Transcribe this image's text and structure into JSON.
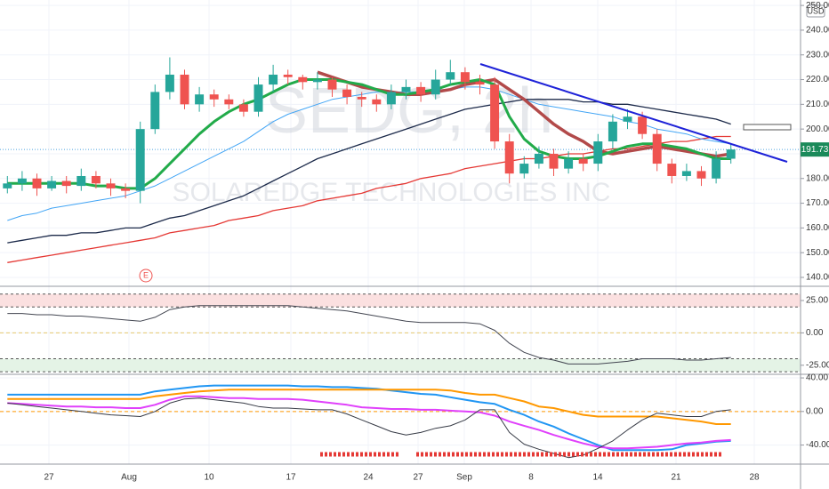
{
  "chart_data": [
    {
      "type": "candlestick",
      "watermark": "SEDG, 2h",
      "subtitle": "SOLAREDGE TECHNOLOGIES INC",
      "currency": "USD",
      "xtick_labels": [
        "27",
        "Aug",
        "10",
        "17",
        "24",
        "27",
        "Sep",
        "8",
        "14",
        "21",
        "28"
      ],
      "open": [
        176,
        178,
        180,
        176,
        179,
        177,
        181,
        178,
        176,
        175,
        200,
        215,
        222,
        210,
        214,
        212,
        210,
        207,
        218,
        222,
        221,
        219,
        220,
        216,
        213,
        212,
        210,
        215,
        217,
        214,
        220,
        223,
        219,
        218,
        195,
        182,
        186,
        190,
        184,
        188,
        186,
        195,
        203,
        205,
        198,
        186,
        181,
        183,
        180,
        188
      ],
      "high": [
        181,
        183,
        182,
        181,
        181,
        184,
        183,
        180,
        178,
        203,
        218,
        229,
        224,
        217,
        216,
        214,
        212,
        221,
        226,
        224,
        222,
        223,
        221,
        218,
        215,
        214,
        218,
        220,
        219,
        224,
        228,
        225,
        222,
        221,
        198,
        189,
        193,
        192,
        191,
        190,
        198,
        206,
        208,
        207,
        200,
        188,
        186,
        185,
        191,
        194
      ],
      "low": [
        174,
        175,
        173,
        175,
        174,
        175,
        176,
        173,
        172,
        170,
        198,
        212,
        208,
        207,
        209,
        208,
        205,
        205,
        215,
        218,
        216,
        216,
        213,
        210,
        209,
        207,
        208,
        212,
        211,
        212,
        218,
        216,
        214,
        192,
        178,
        180,
        184,
        181,
        182,
        183,
        183,
        192,
        200,
        196,
        183,
        178,
        179,
        177,
        178,
        186
      ],
      "close": [
        178,
        180,
        176,
        179,
        177,
        181,
        178,
        176,
        175,
        200,
        215,
        222,
        210,
        214,
        212,
        210,
        207,
        218,
        222,
        221,
        219,
        220,
        216,
        213,
        212,
        210,
        215,
        217,
        214,
        220,
        223,
        219,
        218,
        195,
        182,
        186,
        190,
        184,
        188,
        186,
        195,
        203,
        205,
        198,
        186,
        181,
        183,
        180,
        188,
        191.73
      ],
      "up_color": "#26a69a",
      "down_color": "#ef5350",
      "lines": [
        {
          "color": "#e53935",
          "width": 1.3,
          "values": [
            146,
            147,
            148,
            149,
            150,
            151,
            152,
            153,
            154,
            155,
            156,
            158,
            159,
            160,
            161,
            163,
            164,
            165,
            167,
            168,
            169,
            171,
            172,
            173,
            174,
            176,
            177,
            178,
            180,
            181,
            182,
            184,
            185,
            186,
            187,
            188,
            188,
            189,
            190,
            190,
            191,
            192,
            192,
            193,
            194,
            195,
            195,
            196,
            197,
            197
          ]
        },
        {
          "color": "#1c2a4a",
          "width": 1.3,
          "values": [
            154,
            155,
            156,
            157,
            157,
            158,
            158,
            159,
            160,
            160,
            162,
            164,
            165,
            167,
            169,
            171,
            173,
            176,
            179,
            182,
            185,
            188,
            190,
            192,
            194,
            196,
            198,
            200,
            202,
            204,
            206,
            208,
            209,
            210,
            211,
            212,
            212,
            212,
            212,
            211,
            211,
            210,
            210,
            209,
            208,
            207,
            206,
            205,
            204,
            202
          ]
        },
        {
          "color": "#42a5f5",
          "width": 1,
          "values": [
            163,
            165,
            166,
            168,
            169,
            170,
            171,
            172,
            173,
            175,
            177,
            180,
            183,
            186,
            189,
            192,
            195,
            199,
            203,
            206,
            208,
            210,
            212,
            213,
            214,
            215,
            215,
            215,
            215,
            216,
            216,
            217,
            217,
            216,
            214,
            212,
            210,
            209,
            208,
            207,
            206,
            205,
            203,
            202,
            200,
            199,
            198,
            196,
            195,
            194
          ]
        },
        {
          "color": "#b24a4a",
          "width": 3.5,
          "values": [
            null,
            null,
            null,
            null,
            null,
            null,
            null,
            null,
            null,
            null,
            null,
            null,
            null,
            null,
            null,
            null,
            null,
            null,
            null,
            null,
            null,
            223,
            221,
            219,
            217,
            216,
            215,
            214,
            214,
            215,
            216,
            218,
            219,
            220,
            216,
            212,
            207,
            202,
            198,
            195,
            191,
            190,
            191,
            192,
            193,
            192,
            191,
            190,
            189,
            190
          ]
        },
        {
          "color": "#22ab4a",
          "width": 3,
          "values": [
            178,
            178,
            178,
            178,
            178,
            178,
            177,
            177,
            176,
            176,
            180,
            186,
            192,
            198,
            203,
            207,
            210,
            212,
            215,
            218,
            220,
            220,
            220,
            219,
            218,
            216,
            214,
            214,
            215,
            216,
            218,
            219,
            220,
            218,
            205,
            196,
            191,
            189,
            188,
            188,
            189,
            191,
            193,
            194,
            194,
            193,
            192,
            190,
            188,
            188
          ]
        }
      ],
      "ylim": [
        136.4,
        252.2
      ],
      "yticks": [
        {
          "value": 140,
          "label": "140.00"
        },
        {
          "value": 150,
          "label": "150.00"
        },
        {
          "value": 160,
          "label": "160.00"
        },
        {
          "value": 170,
          "label": "170.00"
        },
        {
          "value": 180,
          "label": "180.00"
        },
        {
          "value": 190,
          "label": "190.00"
        },
        {
          "value": 200,
          "label": "200.00"
        },
        {
          "value": 210,
          "label": "210.00"
        },
        {
          "value": 220,
          "label": "220.00"
        },
        {
          "value": 230,
          "label": "230.00"
        },
        {
          "value": 240,
          "label": "240.00"
        },
        {
          "value": 250,
          "label": "250.00"
        }
      ],
      "last_price": 191.73,
      "last_price_color": "#1b8a5a",
      "annotations": [
        "E"
      ]
    },
    {
      "type": "line",
      "lines": [
        {
          "color": "#434651",
          "width": 1,
          "values": [
            15,
            15,
            14,
            14,
            13,
            13,
            12,
            11,
            10,
            9,
            12,
            18,
            20,
            21,
            21,
            21,
            21,
            21,
            21,
            21,
            20,
            19,
            18,
            17,
            15,
            13,
            11,
            9,
            8,
            8,
            8,
            8,
            7,
            2,
            -8,
            -15,
            -19,
            -21,
            -24,
            -24,
            -24,
            -23,
            -22,
            -20,
            -20,
            -20,
            -21,
            -21,
            -20,
            -19
          ]
        }
      ],
      "ylim": [
        -32,
        36
      ],
      "yticks": [
        {
          "value": 25,
          "label": "25.00"
        },
        {
          "value": 0,
          "label": "0.00"
        },
        {
          "value": -25,
          "label": "-25.00"
        }
      ],
      "bands": [
        {
          "range": [
            20,
            30
          ],
          "color": "#fbe0e0"
        },
        {
          "range": [
            -30,
            -20
          ],
          "color": "#e4f3e6"
        }
      ],
      "zero_line": {
        "value": 0,
        "color": "#e6c86e"
      }
    },
    {
      "type": "line",
      "lines": [
        {
          "color": "#2196f3",
          "width": 2,
          "values": [
            20,
            20,
            20,
            20,
            20,
            20,
            20,
            20,
            20,
            20,
            24,
            26,
            28,
            30,
            31,
            31,
            31,
            31,
            31,
            31,
            30,
            30,
            29,
            29,
            28,
            27,
            25,
            23,
            21,
            20,
            17,
            14,
            11,
            9,
            2,
            -4,
            -12,
            -18,
            -26,
            -33,
            -40,
            -46,
            -46,
            -46,
            -46,
            -45,
            -40,
            -38,
            -36,
            -35
          ]
        },
        {
          "color": "#ff9800",
          "width": 2,
          "values": [
            15,
            15,
            15,
            15,
            15,
            15,
            15,
            15,
            15,
            15,
            18,
            20,
            22,
            24,
            25,
            26,
            26,
            26,
            26,
            26,
            26,
            26,
            26,
            26,
            26,
            26,
            26,
            26,
            26,
            26,
            25,
            22,
            20,
            20,
            16,
            12,
            6,
            4,
            0,
            -4,
            -6,
            -6,
            -6,
            -6,
            -6,
            -8,
            -10,
            -12,
            -15,
            -15
          ]
        },
        {
          "color": "#e040fb",
          "width": 2,
          "values": [
            10,
            9,
            8,
            7,
            6,
            6,
            5,
            5,
            4,
            4,
            8,
            14,
            18,
            18,
            17,
            16,
            16,
            15,
            15,
            15,
            14,
            12,
            10,
            8,
            5,
            4,
            3,
            3,
            2,
            2,
            1,
            0,
            -1,
            -5,
            -12,
            -17,
            -22,
            -28,
            -33,
            -38,
            -42,
            -44,
            -44,
            -43,
            -42,
            -40,
            -38,
            -37,
            -35,
            -34
          ]
        },
        {
          "color": "#363a45",
          "width": 1,
          "values": [
            10,
            8,
            6,
            4,
            2,
            0,
            -2,
            -4,
            -5,
            -6,
            0,
            10,
            15,
            16,
            14,
            12,
            10,
            6,
            4,
            4,
            3,
            2,
            2,
            -3,
            -10,
            -17,
            -24,
            -28,
            -25,
            -20,
            -17,
            -10,
            2,
            2,
            -25,
            -39,
            -45,
            -50,
            -55,
            -52,
            -44,
            -35,
            -22,
            -10,
            -2,
            -4,
            -6,
            -6,
            0,
            2
          ]
        }
      ],
      "ylim": [
        -62.7,
        44.3
      ],
      "yticks": [
        {
          "value": 40,
          "label": "40.00"
        },
        {
          "value": 0,
          "label": "0.00"
        },
        {
          "value": -40,
          "label": "-40.00"
        }
      ],
      "zero_line": {
        "value": 0,
        "color": "#ff9800"
      }
    }
  ]
}
